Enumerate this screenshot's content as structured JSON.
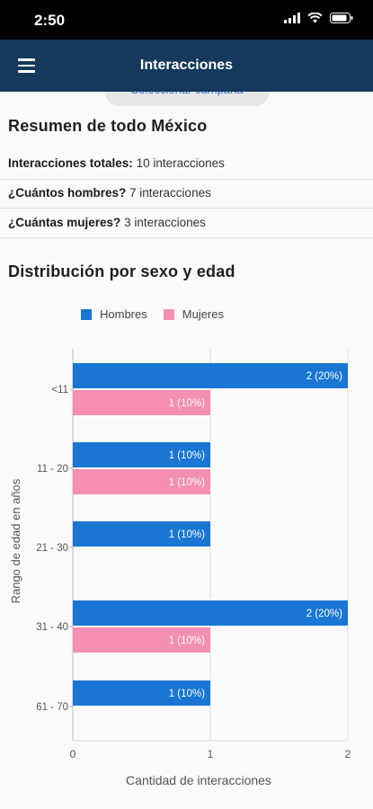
{
  "status_bar": {
    "time": "2:50"
  },
  "app_bar": {
    "title": "Interacciones"
  },
  "campaign_button": {
    "label": "Seleccionar campaña"
  },
  "summary": {
    "title": "Resumen de todo México",
    "rows": [
      {
        "label": "Interacciones totales:",
        "value": "10 interacciones"
      },
      {
        "label": "¿Cuántos hombres?",
        "value": "7 interacciones"
      },
      {
        "label": "¿Cuántas mujeres?",
        "value": "3 interacciones"
      }
    ]
  },
  "distribution": {
    "title": "Distribución por sexo y edad"
  },
  "chart_data": {
    "type": "bar",
    "orientation": "horizontal",
    "categories": [
      "<11",
      "11 - 20",
      "21 - 30",
      "31 - 40",
      "61 - 70"
    ],
    "series": [
      {
        "name": "Hombres",
        "color": "#1976d2",
        "values": [
          2,
          1,
          1,
          2,
          1
        ],
        "labels": [
          "2 (20%)",
          "1 (10%)",
          "1 (10%)",
          "2 (20%)",
          "1 (10%)"
        ]
      },
      {
        "name": "Mujeres",
        "color": "#f48fb1",
        "values": [
          1,
          1,
          null,
          1,
          null
        ],
        "labels": [
          "1 (10%)",
          "1 (10%)",
          null,
          "1 (10%)",
          null
        ]
      }
    ],
    "xlabel": "Cantidad de interacciones",
    "ylabel": "Rango de edad en años",
    "xlim": [
      0,
      2
    ],
    "xticks": [
      "0",
      "1",
      "2"
    ],
    "legend_position": "top",
    "grid": "vertical"
  }
}
